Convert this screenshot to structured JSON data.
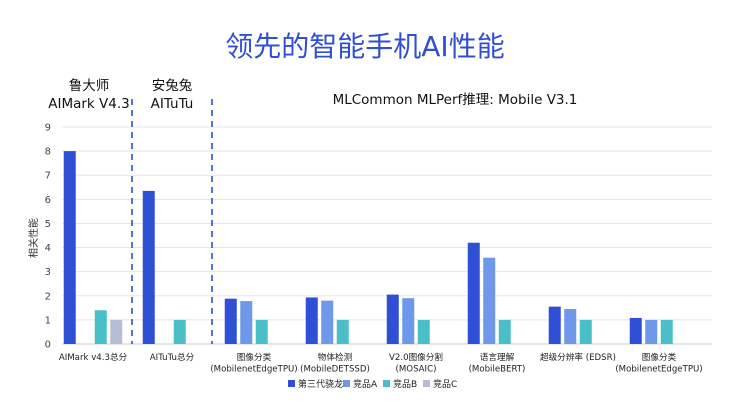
{
  "title": "领先的智能手机AI性能",
  "group_headers": [
    {
      "lines": [
        "鲁大师",
        "AIMark V4.3"
      ]
    },
    {
      "lines": [
        "安兔兔",
        "AITuTu"
      ]
    },
    {
      "lines": [
        "MLCommon MLPerf推理: Mobile V3.1"
      ]
    }
  ],
  "chart_data": {
    "type": "bar",
    "ylabel": "相关性能",
    "ylim": [
      0,
      9
    ],
    "yticks": [
      0,
      1,
      2,
      3,
      4,
      5,
      6,
      7,
      8,
      9
    ],
    "grid": true,
    "legend_position": "bottom-center",
    "categories": [
      [
        "AIMark v4.3总分"
      ],
      [
        "AITuTu总分"
      ],
      [
        "图像分类",
        "(MobilenetEdgeTPU)"
      ],
      [
        "物体检测",
        "(MobileDETSSD)"
      ],
      [
        "V2.0图像分割",
        "(MOSAIC)"
      ],
      [
        "语言理解",
        "(MobileBERT)"
      ],
      [
        "超级分辨率 (EDSR)"
      ],
      [
        "图像分类",
        "(MobilenetEdgeTPU)"
      ]
    ],
    "series": [
      {
        "name": "第三代骁龙8",
        "color": "#2f4fd4",
        "values": [
          8.0,
          6.35,
          1.88,
          1.93,
          2.05,
          4.2,
          1.55,
          1.08
        ]
      },
      {
        "name": "竞品A",
        "color": "#6f97ea",
        "values": [
          null,
          null,
          1.78,
          1.8,
          1.9,
          3.58,
          1.45,
          1.0
        ]
      },
      {
        "name": "竞品B",
        "color": "#4bbfc8",
        "values": [
          1.4,
          1.0,
          1.0,
          1.0,
          1.0,
          1.0,
          1.0,
          1.0
        ]
      },
      {
        "name": "竞品C",
        "color": "#b4bdd3",
        "values": [
          1.0,
          null,
          null,
          null,
          null,
          null,
          null,
          null
        ]
      }
    ]
  }
}
